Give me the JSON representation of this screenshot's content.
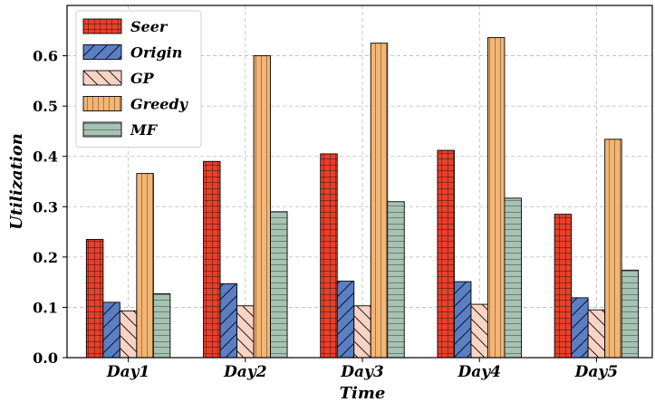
{
  "chart_data": {
    "type": "bar",
    "title": "",
    "xlabel": "Time",
    "ylabel": "Utilization",
    "ylim": [
      0,
      0.7
    ],
    "yticks": [
      "0.0",
      "0.1",
      "0.2",
      "0.3",
      "0.4",
      "0.5",
      "0.6"
    ],
    "grid": true,
    "legend_position": "top-left",
    "categories": [
      "Day1",
      "Day2",
      "Day3",
      "Day4",
      "Day5"
    ],
    "series": [
      {
        "name": "Seer",
        "values": [
          0.235,
          0.39,
          0.405,
          0.412,
          0.285
        ],
        "color": "#e8402a",
        "pattern": "grid"
      },
      {
        "name": "Origin",
        "values": [
          0.11,
          0.147,
          0.152,
          0.151,
          0.119
        ],
        "color": "#5b7fc4",
        "pattern": "slash"
      },
      {
        "name": "GP",
        "values": [
          0.093,
          0.103,
          0.103,
          0.106,
          0.095
        ],
        "color": "#f9d3c4",
        "pattern": "backslash"
      },
      {
        "name": "Greedy",
        "values": [
          0.366,
          0.6,
          0.625,
          0.636,
          0.434
        ],
        "color": "#f4b574",
        "pattern": "vertical"
      },
      {
        "name": "MF",
        "values": [
          0.127,
          0.29,
          0.31,
          0.317,
          0.174
        ],
        "color": "#a6c2b2",
        "pattern": "horizontal"
      }
    ]
  }
}
